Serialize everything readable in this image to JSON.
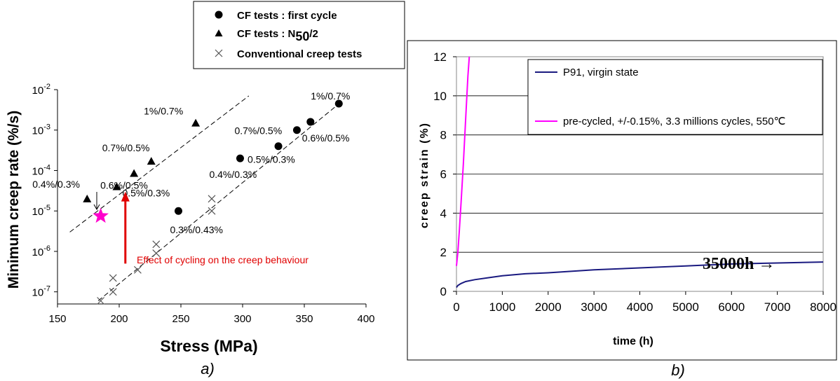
{
  "chart_data": [
    {
      "type": "scatter",
      "caption": "a)",
      "xlabel": "Stress (MPa)",
      "ylabel": "Minimum creep rate (%/s)",
      "xlim": [
        150,
        400
      ],
      "xticks": [
        "150",
        "200",
        "250",
        "300",
        "350",
        "400"
      ],
      "ylim_exp": [
        -7.3,
        -2
      ],
      "yscale": "log",
      "yticks": [
        {
          "base": "10",
          "exp": "-2",
          "value": 0.01
        },
        {
          "base": "10",
          "exp": "-3",
          "value": 0.001
        },
        {
          "base": "10",
          "exp": "-4",
          "value": 0.0001
        },
        {
          "base": "10",
          "exp": "-5",
          "value": 1e-05
        },
        {
          "base": "10",
          "exp": "-6",
          "value": 1e-06
        },
        {
          "base": "10",
          "exp": "-7",
          "value": 1e-07
        }
      ],
      "legend": {
        "position": "top",
        "entries": [
          {
            "symbol": "circle",
            "label": "CF tests : first cycle"
          },
          {
            "symbol": "triangle",
            "label_main": "CF tests : N",
            "label_sub": "50",
            "label_tail": "/2"
          },
          {
            "symbol": "cross",
            "label": "Conventional creep tests"
          }
        ]
      },
      "series": [
        {
          "name": "CF tests : first cycle",
          "marker": "circle",
          "points": [
            {
              "x": 248,
              "y": 1e-05,
              "label": "0.3%/0.43%"
            },
            {
              "x": 298,
              "y": 0.0002,
              "label": "0.4%/0.3%"
            },
            {
              "x": 329,
              "y": 0.0004,
              "label": "0.5%/0.3%"
            },
            {
              "x": 344,
              "y": 0.001,
              "label": "0.7%/0.5%"
            },
            {
              "x": 355,
              "y": 0.0016,
              "label": "0.6%/0.5%"
            },
            {
              "x": 378,
              "y": 0.0045,
              "label": "1%/0.7%"
            }
          ]
        },
        {
          "name": "CF tests : N50/2",
          "marker": "triangle",
          "points": [
            {
              "x": 174,
              "y": 2e-05,
              "label": "0.4%/0.3%"
            },
            {
              "x": 198,
              "y": 4e-05,
              "label": "0.5%/0.3%"
            },
            {
              "x": 212,
              "y": 8.5e-05,
              "label": "0.6%/0.5%"
            },
            {
              "x": 226,
              "y": 0.00017,
              "label": "0.7%/0.5%"
            },
            {
              "x": 262,
              "y": 0.0015,
              "label": "1%/0.7%"
            }
          ]
        },
        {
          "name": "Conventional creep tests",
          "marker": "cross",
          "points": [
            {
              "x": 185,
              "y": 6e-08
            },
            {
              "x": 195,
              "y": 1e-07
            },
            {
              "x": 195,
              "y": 2.2e-07
            },
            {
              "x": 215,
              "y": 3.5e-07
            },
            {
              "x": 230,
              "y": 9e-07
            },
            {
              "x": 230,
              "y": 1.5e-06
            },
            {
              "x": 275,
              "y": 1e-05
            },
            {
              "x": 275,
              "y": 2e-05
            }
          ]
        }
      ],
      "trend_lines": [
        {
          "from": [
            160,
            3e-06
          ],
          "to": [
            305,
            0.007
          ]
        },
        {
          "from": [
            183,
            6e-08
          ],
          "to": [
            380,
            0.005
          ]
        }
      ],
      "star": {
        "x": 185,
        "y": 7.5e-06,
        "color": "#ff00cc"
      },
      "arrow_annotation": {
        "text": "Effect of cycling on the creep behaviour",
        "color": "#e00000",
        "from": [
          205,
          5e-07
        ],
        "to": [
          205,
          3e-05
        ]
      }
    },
    {
      "type": "line",
      "caption": "b)",
      "xlabel": "time (h)",
      "ylabel": "creep strain (%)",
      "xlim": [
        0,
        8000
      ],
      "ylim": [
        0,
        12
      ],
      "xticks": [
        "0",
        "1000",
        "2000",
        "3000",
        "4000",
        "5000",
        "6000",
        "7000",
        "8000"
      ],
      "yticks": [
        "0",
        "2",
        "4",
        "6",
        "8",
        "10",
        "12"
      ],
      "grid": "horizontal",
      "legend_position": "top-right",
      "series": [
        {
          "name": "P91, virgin state",
          "color": "#1a1a80",
          "x": [
            0,
            30,
            100,
            200,
            400,
            700,
            1000,
            1500,
            2000,
            3000,
            4000,
            5000,
            6000,
            7000,
            8000
          ],
          "y": [
            0.2,
            0.3,
            0.4,
            0.5,
            0.6,
            0.7,
            0.8,
            0.9,
            0.95,
            1.1,
            1.2,
            1.3,
            1.4,
            1.45,
            1.5
          ]
        },
        {
          "name": "pre-cycled, +/-0.15%, 3.3 millions cycles, 550℃",
          "color": "#ff00ff",
          "x": [
            0,
            30,
            60,
            100,
            150,
            200,
            250,
            280
          ],
          "y": [
            1.3,
            2.0,
            3.0,
            4.5,
            6.5,
            8.8,
            11.0,
            12.0
          ]
        }
      ],
      "annotation": {
        "text": "35000h",
        "arrow": "→"
      }
    }
  ]
}
